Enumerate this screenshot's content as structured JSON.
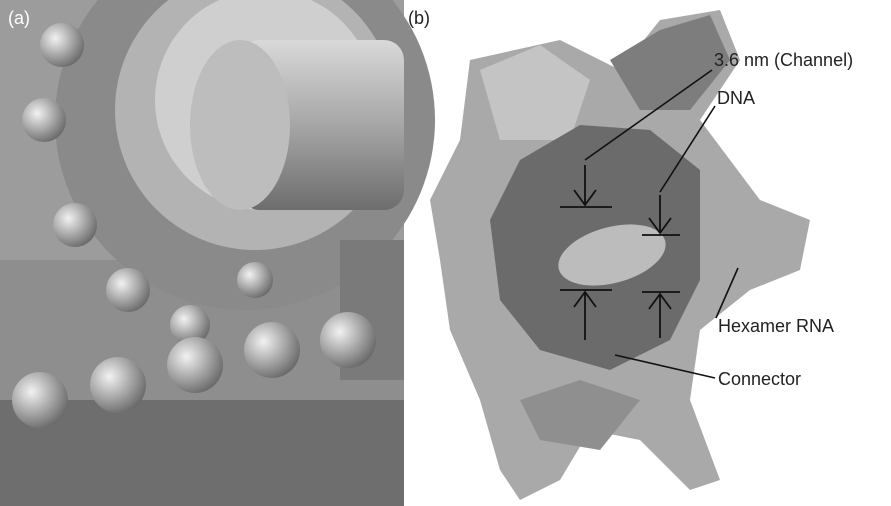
{
  "panels": [
    {
      "label": "(a)"
    },
    {
      "label": "(b)",
      "annotations": [
        "3.6 nm (Channel)",
        "DNA",
        "Hexamer RNA",
        "Connector"
      ]
    }
  ]
}
